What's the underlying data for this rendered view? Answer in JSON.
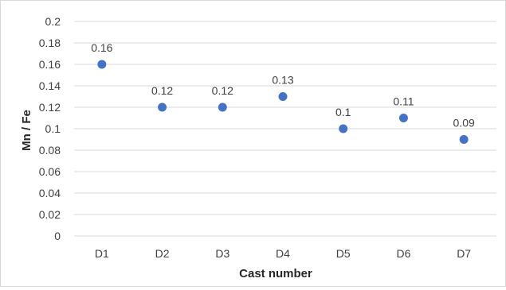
{
  "chart_data": {
    "type": "scatter",
    "title": "",
    "xlabel": "Cast number",
    "ylabel": "Mn / Fe",
    "categories": [
      "D1",
      "D2",
      "D3",
      "D4",
      "D5",
      "D6",
      "D7"
    ],
    "values": [
      0.16,
      0.12,
      0.12,
      0.13,
      0.1,
      0.11,
      0.09
    ],
    "data_labels": [
      "0.16",
      "0.12",
      "0.12",
      "0.13",
      "0.1",
      "0.11",
      "0.09"
    ],
    "ylim": [
      0,
      0.2
    ],
    "yticks": [
      "0",
      "0.02",
      "0.04",
      "0.06",
      "0.08",
      "0.1",
      "0.12",
      "0.14",
      "0.16",
      "0.18",
      "0.2"
    ],
    "grid": true,
    "legend": "none",
    "colors": {
      "marker": "#4472c4",
      "grid": "#d9d9d9",
      "text": "#404040"
    }
  }
}
